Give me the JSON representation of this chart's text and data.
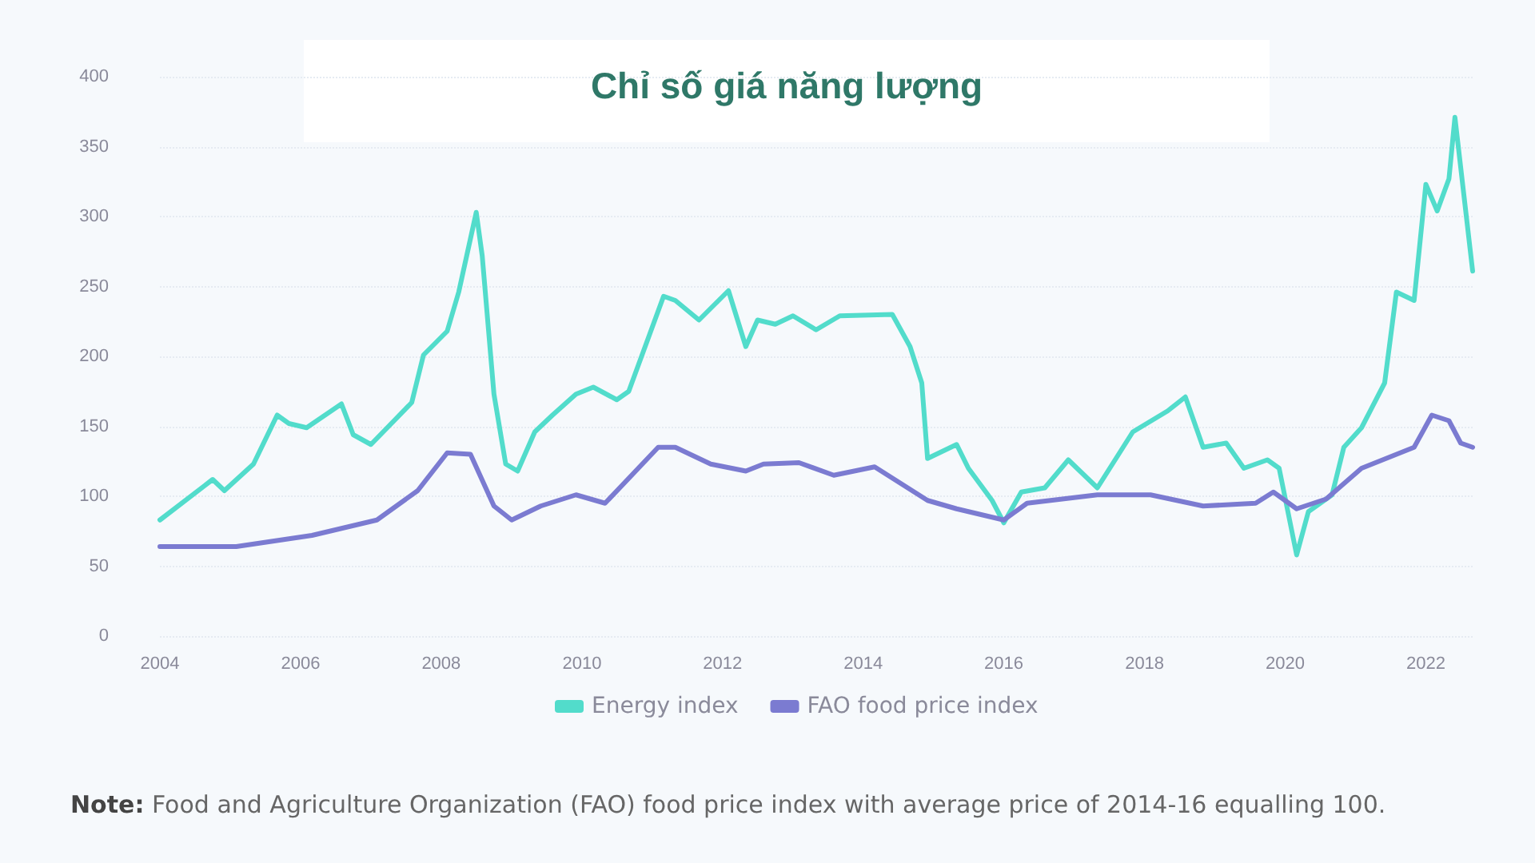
{
  "chart_data": {
    "type": "line",
    "title": "Chỉ số giá năng lượng",
    "series": [
      {
        "name": "Energy index",
        "color": "#52dccb",
        "x": [
          "2004-01",
          "2004-10",
          "2004-12",
          "2005-05",
          "2005-09",
          "2005-11",
          "2006-02",
          "2006-08",
          "2006-10",
          "2007-01",
          "2007-08",
          "2007-10",
          "2008-02",
          "2008-04",
          "2008-07",
          "2008-08",
          "2008-10",
          "2008-12",
          "2009-02",
          "2009-05",
          "2009-08",
          "2009-12",
          "2010-03",
          "2010-07",
          "2010-09",
          "2011-03",
          "2011-05",
          "2011-09",
          "2012-02",
          "2012-05",
          "2012-07",
          "2012-10",
          "2013-01",
          "2013-05",
          "2013-09",
          "2014-06",
          "2014-09",
          "2014-11",
          "2014-12",
          "2015-05",
          "2015-07",
          "2015-11",
          "2016-01",
          "2016-04",
          "2016-08",
          "2016-12",
          "2017-05",
          "2017-11",
          "2018-05",
          "2018-08",
          "2018-11",
          "2019-03",
          "2019-06",
          "2019-10",
          "2019-12",
          "2020-03",
          "2020-05",
          "2020-09",
          "2020-11",
          "2021-02",
          "2021-06",
          "2021-08",
          "2021-11",
          "2022-01",
          "2022-03",
          "2022-05",
          "2022-06",
          "2022-09"
        ],
        "values": [
          83,
          112,
          104,
          123,
          158,
          152,
          149,
          166,
          144,
          137,
          167,
          201,
          218,
          246,
          303,
          272,
          173,
          123,
          118,
          146,
          158,
          173,
          178,
          169,
          175,
          243,
          240,
          226,
          247,
          207,
          226,
          223,
          229,
          219,
          229,
          230,
          207,
          181,
          127,
          137,
          120,
          97,
          81,
          103,
          106,
          126,
          106,
          146,
          161,
          171,
          135,
          138,
          120,
          126,
          120,
          58,
          89,
          101,
          135,
          149,
          181,
          246,
          240,
          323,
          304,
          327,
          371,
          261
        ]
      },
      {
        "name": "FAO food price index",
        "color": "#7b7bd1",
        "x": [
          "2004-01",
          "2005-02",
          "2006-03",
          "2007-02",
          "2007-09",
          "2008-02",
          "2008-06",
          "2008-10",
          "2009-01",
          "2009-06",
          "2009-12",
          "2010-05",
          "2011-02",
          "2011-05",
          "2011-11",
          "2012-05",
          "2012-08",
          "2013-02",
          "2013-08",
          "2014-03",
          "2014-12",
          "2015-05",
          "2016-01",
          "2016-05",
          "2017-05",
          "2018-02",
          "2018-11",
          "2019-08",
          "2019-11",
          "2020-03",
          "2020-08",
          "2021-02",
          "2021-11",
          "2022-02",
          "2022-05",
          "2022-07",
          "2022-09"
        ],
        "values": [
          64,
          64,
          72,
          83,
          104,
          131,
          130,
          93,
          83,
          93,
          101,
          95,
          135,
          135,
          123,
          118,
          123,
          124,
          115,
          121,
          97,
          91,
          83,
          95,
          101,
          101,
          93,
          95,
          103,
          91,
          98,
          120,
          135,
          158,
          154,
          138,
          135
        ]
      }
    ],
    "xlim": [
      "2004-01",
      "2022-09"
    ],
    "xticks": [
      "2004",
      "2006",
      "2008",
      "2010",
      "2012",
      "2014",
      "2016",
      "2018",
      "2020",
      "2022"
    ],
    "ylim": [
      0,
      400
    ],
    "yticks": [
      0,
      50,
      100,
      150,
      200,
      250,
      300,
      350,
      400
    ],
    "grid": "y",
    "legend": "bottom",
    "marker": "none",
    "line_style": "solid",
    "annotations": [
      "Note: Food and Agriculture Organization (FAO) food price index with average price of 2014-16 equalling 100."
    ]
  }
}
